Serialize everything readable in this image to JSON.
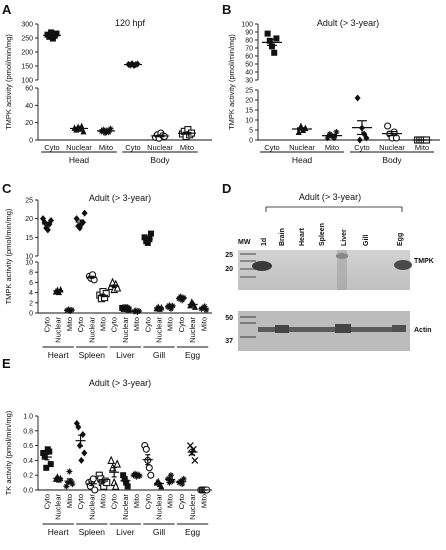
{
  "chart_data": [
    {
      "panel": "A",
      "type": "scatter",
      "title": "120 hpf",
      "ylabel": "TMPK activity (pmol/min/mg)",
      "axis_break": {
        "lower": [
          0,
          60
        ],
        "upper": [
          100,
          300
        ]
      },
      "upper_ticks": [
        "300",
        "250",
        "200",
        "150",
        "100"
      ],
      "lower_ticks": [
        "60",
        "40",
        "20",
        "0"
      ],
      "categories": [
        "Cyto",
        "Nuclear",
        "Mito",
        "Cyto",
        "Nuclear",
        "Mito"
      ],
      "groups": [
        "Head",
        "Body"
      ],
      "series": [
        {
          "values": [
            262,
            254,
            270,
            248,
            258,
            266
          ]
        },
        {
          "values": [
            14,
            12,
            15,
            13,
            16,
            10
          ]
        },
        {
          "values": [
            10,
            12,
            8,
            11,
            9,
            13
          ]
        },
        {
          "values": [
            156,
            153,
            158,
            152,
            155,
            157
          ]
        },
        {
          "values": [
            3,
            6,
            2,
            8,
            5,
            4
          ]
        },
        {
          "values": [
            7,
            10,
            4,
            12,
            6,
            8
          ]
        }
      ],
      "markers": [
        "square",
        "triangle",
        "star",
        "diamond",
        "circle",
        "square-open"
      ]
    },
    {
      "panel": "B",
      "type": "scatter",
      "title": "Adult (> 3-year)",
      "ylabel": "TMPK activity (pmol/min/mg)",
      "axis_break": {
        "lower": [
          0,
          25
        ],
        "upper": [
          30,
          100
        ]
      },
      "upper_ticks": [
        "100",
        "90",
        "80",
        "70",
        "60",
        "50",
        "40",
        "30"
      ],
      "lower_ticks": [
        "25",
        "20",
        "15",
        "10",
        "5",
        "0"
      ],
      "categories": [
        "Cyto",
        "Nuclear",
        "Mito",
        "Cyto",
        "Nuclear",
        "Mito"
      ],
      "groups": [
        "Head",
        "Body"
      ],
      "series": [
        {
          "values": [
            88,
            79,
            72,
            64,
            82
          ]
        },
        {
          "values": [
            4,
            7,
            5,
            6
          ]
        },
        {
          "values": [
            1,
            3,
            2,
            1,
            4
          ]
        },
        {
          "values": [
            21,
            0,
            6,
            3,
            1
          ]
        },
        {
          "values": [
            7,
            3,
            1,
            4,
            1
          ]
        },
        {
          "values": [
            0,
            0,
            0,
            0,
            0
          ]
        }
      ],
      "markers": [
        "square",
        "triangle",
        "star",
        "diamond",
        "circle",
        "square-open"
      ]
    },
    {
      "panel": "C",
      "type": "scatter",
      "title": "Adult (> 3-year)",
      "ylabel": "TMPK activity (pmol/min/mg)",
      "axis_break": {
        "lower": [
          0,
          10
        ],
        "upper": [
          10,
          25
        ]
      },
      "upper_ticks": [
        "25",
        "20",
        "15",
        "10"
      ],
      "lower_ticks": [
        "10",
        "8",
        "6",
        "4",
        "2",
        "0"
      ],
      "categories": [
        "Cyto",
        "Nuclear",
        "Mito",
        "Cyto",
        "Nuclear",
        "Mito",
        "Cyto",
        "Nuclear",
        "Mito",
        "Cyto",
        "Nuclear",
        "Mito",
        "Cyto",
        "Nuclear",
        "Mito"
      ],
      "groups": [
        "Heart",
        "Spleen",
        "Liver",
        "Gill",
        "Egg"
      ],
      "series": [
        {
          "values": [
            20,
            19,
            17.5,
            17,
            18.5,
            19.5
          ]
        },
        {
          "values": [
            4.2,
            4.5,
            4.1,
            4.6
          ]
        },
        {
          "values": [
            0.5,
            0.7,
            0.4,
            0.6
          ]
        },
        {
          "values": [
            20,
            18,
            17.5,
            18.5,
            19,
            21.5
          ]
        },
        {
          "values": [
            7.2,
            6.8,
            7.5,
            6.5
          ]
        },
        {
          "values": [
            3.5,
            2.8,
            4.2,
            3.0,
            3.8
          ]
        },
        {
          "values": [
            5.2,
            6.0,
            4.6,
            5.6,
            4.9
          ]
        },
        {
          "values": [
            1.0,
            0.8,
            1.1,
            0.9,
            0.7
          ]
        },
        {
          "values": [
            0.3,
            0.5,
            0.2,
            0.4
          ]
        },
        {
          "values": [
            15,
            14,
            13.5,
            14.5,
            16
          ]
        },
        {
          "values": [
            0.9,
            1.2,
            0.8,
            1.1
          ]
        },
        {
          "values": [
            1.2,
            1.5,
            0.8,
            1.4
          ]
        },
        {
          "values": [
            2.8,
            3.2,
            2.5,
            3.0
          ]
        },
        {
          "values": [
            1.5,
            2.2,
            1.8,
            1.2
          ]
        },
        {
          "values": [
            0.8,
            1.0,
            1.3,
            0.6
          ]
        }
      ],
      "markers": [
        "diamond",
        "triangle",
        "star",
        "diamond",
        "circle",
        "square-open",
        "triangle-open",
        "square",
        "star",
        "square",
        "triangle",
        "star",
        "star",
        "triangle",
        "star"
      ]
    },
    {
      "panel": "E",
      "type": "scatter",
      "title": "Adult (> 3-year)",
      "ylabel": "TK activity (pmol/min/mg)",
      "ylim": [
        0,
        1.0
      ],
      "ticks": [
        "1.0",
        "0.8",
        "0.6",
        "0.4",
        "0.2",
        "0.0"
      ],
      "categories": [
        "Cyto",
        "Nuclear",
        "Mito",
        "Cyto",
        "Nuclear",
        "Mito",
        "Cyto",
        "Nuclear",
        "Mito",
        "Cyto",
        "Nuclear",
        "Mito",
        "Cyto",
        "Nuclear",
        "Mito"
      ],
      "groups": [
        "Heart",
        "Spleen",
        "Liver",
        "Gill",
        "Egg"
      ],
      "series": [
        {
          "values": [
            0.5,
            0.45,
            0.3,
            0.55,
            0.52,
            0.35
          ]
        },
        {
          "values": [
            0.15,
            0.18,
            0.14,
            0.16
          ]
        },
        {
          "values": [
            0.05,
            0.1,
            0.25,
            0.12,
            0.08
          ]
        },
        {
          "values": [
            0.9,
            0.85,
            0.6,
            0.4,
            0.75,
            0.5
          ]
        },
        {
          "values": [
            0.1,
            0.05,
            0.12,
            0.15,
            0.0
          ]
        },
        {
          "values": [
            0.2,
            0.15,
            0.1,
            0.05,
            0.12,
            0.1
          ]
        },
        {
          "values": [
            0.4,
            0.3,
            0.1,
            0.05,
            0.35
          ]
        },
        {
          "values": [
            0.2,
            0.15,
            0.1,
            0.05
          ]
        },
        {
          "values": [
            0.2,
            0.22,
            0.18,
            0.21,
            0.19
          ]
        },
        {
          "values": [
            0.6,
            0.55,
            0.4,
            0.3,
            0.2
          ]
        },
        {
          "values": [
            0.1,
            0.12,
            0.08,
            0.05
          ]
        },
        {
          "values": [
            0.15,
            0.1,
            0.2,
            0.12
          ]
        },
        {
          "values": [
            0.1,
            0.12,
            0.08,
            0.15
          ]
        },
        {
          "values": [
            0.6,
            0.5,
            0.55,
            0.4
          ]
        },
        {
          "values": [
            0.0,
            0.0,
            0.0,
            0.0,
            0.0
          ]
        }
      ],
      "markers": [
        "square",
        "triangle",
        "star",
        "diamond",
        "circle",
        "square-open",
        "triangle-open",
        "square",
        "star",
        "circle",
        "triangle",
        "star",
        "star",
        "x",
        "circle"
      ]
    }
  ],
  "panel_D": {
    "letter": "D",
    "title": "Adult (> 3-year)",
    "lanes": [
      "MW",
      "1d",
      "Brain",
      "Heart",
      "Spleen",
      "Liver",
      "Gill",
      "Egg"
    ],
    "mw_upper": [
      "25",
      "20"
    ],
    "mw_lower": [
      "50",
      "37"
    ],
    "band_top": "TMPK",
    "band_bottom": "Actin"
  },
  "letters": {
    "A": "A",
    "B": "B",
    "C": "C",
    "E": "E"
  }
}
